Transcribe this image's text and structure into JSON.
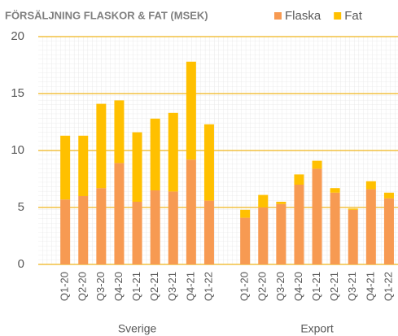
{
  "chart_data": {
    "type": "stacked_bar",
    "title": "FÖRSÄLJNING FLASKOR & FAT (MSEK)",
    "groups": [
      {
        "name": "Sverige",
        "categories": [
          "Q1-20",
          "Q2-20",
          "Q3-20",
          "Q4-20",
          "Q1-21",
          "Q2-21",
          "Q3-21",
          "Q4-21",
          "Q1-22"
        ]
      },
      {
        "name": "Export",
        "categories": [
          "Q1-20",
          "Q2-20",
          "Q3-20",
          "Q4-20",
          "Q1-21",
          "Q2-21",
          "Q3-21",
          "Q4-21",
          "Q1-22"
        ]
      }
    ],
    "series": [
      {
        "name": "Flaska",
        "color": "#f79a52",
        "values": [
          5.7,
          6.0,
          6.7,
          8.9,
          5.5,
          6.5,
          6.4,
          9.2,
          5.6,
          4.1,
          5.0,
          5.3,
          7.0,
          8.4,
          6.3,
          4.8,
          6.6,
          5.8
        ]
      },
      {
        "name": "Fat",
        "color": "#ffc000",
        "values": [
          5.6,
          5.3,
          7.4,
          5.5,
          6.1,
          6.3,
          6.9,
          8.6,
          6.7,
          0.7,
          1.1,
          0.2,
          0.9,
          0.7,
          0.4,
          0.1,
          0.7,
          0.5
        ]
      }
    ],
    "ylim": [
      0,
      20
    ],
    "yticks": [
      0,
      5,
      10,
      15,
      20
    ],
    "grid": true,
    "legend": "top-right"
  }
}
